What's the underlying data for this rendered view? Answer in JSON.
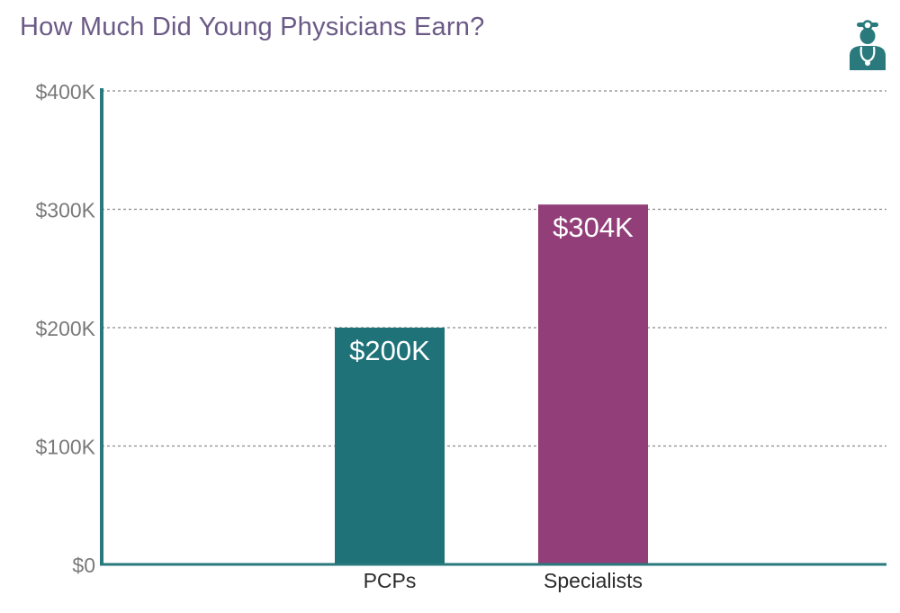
{
  "title": "How Much Did Young Physicians Earn?",
  "icon": "doctor-icon",
  "colors": {
    "title": "#6b5a86",
    "axis": "#2a7a7d",
    "grid": "#8a8a8a",
    "tick_label": "#7a7a7a",
    "category_label": "#2b2b2b",
    "bar_label": "#ffffff",
    "icon": "#2a7a7d"
  },
  "chart_data": {
    "type": "bar",
    "title": "How Much Did Young Physicians Earn?",
    "categories": [
      "PCPs",
      "Specialists"
    ],
    "values": [
      200,
      304
    ],
    "value_labels": [
      "$200K",
      "$304K"
    ],
    "bar_colors": [
      "#1e7278",
      "#913e79"
    ],
    "unit": "thousand USD",
    "xlabel": "",
    "ylabel": "",
    "ylim": [
      0,
      400
    ],
    "yticks": [
      0,
      100,
      200,
      300,
      400
    ],
    "ytick_labels": [
      "$0",
      "$100K",
      "$200K",
      "$300K",
      "$400K"
    ],
    "grid": "horizontal dashed",
    "legend": "none"
  }
}
